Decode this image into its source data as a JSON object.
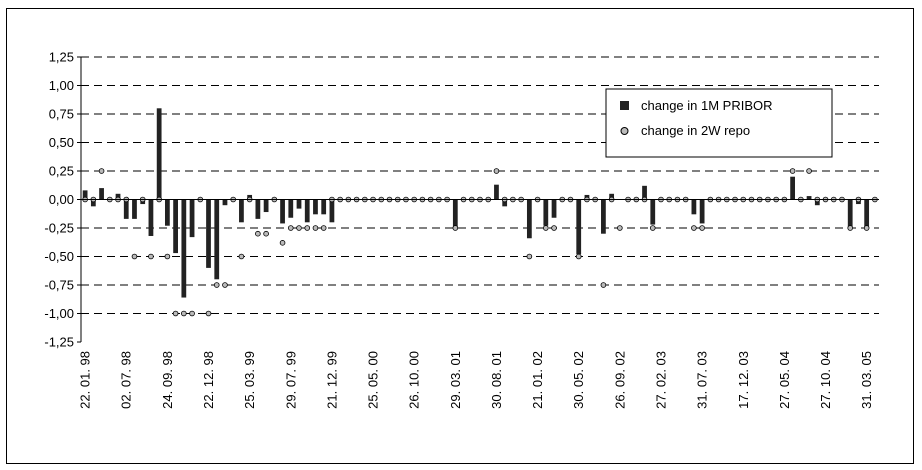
{
  "chart_data": {
    "type": "bar",
    "title": "",
    "xlabel": "",
    "ylabel": "",
    "ylim": [
      -1.25,
      1.25
    ],
    "yticks": [
      "1,25",
      "1,00",
      "0,75",
      "0,50",
      "0,25",
      "0,00",
      "-0,25",
      "-0,50",
      "-0,75",
      "-1,00",
      "-1,25"
    ],
    "ytick_values": [
      1.25,
      1.0,
      0.75,
      0.5,
      0.25,
      0.0,
      -0.25,
      -0.5,
      -0.75,
      -1.0,
      -1.25
    ],
    "x_tick_labels": [
      "22. 01. 98",
      "02. 07. 98",
      "24. 09. 98",
      "22. 12. 98",
      "25. 03. 99",
      "29. 07. 99",
      "21. 12. 99",
      "25. 05. 00",
      "26. 10. 00",
      "29. 03. 01",
      "30. 08. 01",
      "21. 01. 02",
      "30. 05. 02",
      "26. 09. 02",
      "27. 02. 03",
      "31. 07. 03",
      "17. 12. 03",
      "27. 05. 04",
      "27. 10. 04",
      "31. 03. 05"
    ],
    "x_tick_positions": [
      0,
      5,
      10,
      15,
      20,
      25,
      30,
      35,
      40,
      45,
      50,
      55,
      60,
      65,
      70,
      75,
      80,
      85,
      90,
      95
    ],
    "grid": "horizontal dashed",
    "legend_position": "top-right",
    "series": [
      {
        "name": "change in 1M PRIBOR",
        "style": "bar",
        "color": "#222222",
        "values": [
          0.08,
          -0.06,
          0.1,
          0.0,
          0.05,
          -0.17,
          -0.17,
          -0.04,
          -0.32,
          0.8,
          -0.23,
          -0.47,
          -0.86,
          -0.33,
          0.0,
          -0.6,
          -0.7,
          -0.05,
          0.0,
          -0.2,
          0.04,
          -0.17,
          -0.11,
          0.0,
          -0.21,
          -0.16,
          -0.08,
          -0.2,
          -0.13,
          -0.13,
          -0.2,
          0.0,
          0.0,
          0.0,
          0.0,
          0.0,
          0.0,
          0.0,
          0.0,
          0.0,
          0.0,
          0.0,
          0.0,
          0.0,
          0.0,
          -0.25,
          0.0,
          0.0,
          0.0,
          0.0,
          0.13,
          -0.06,
          0.0,
          0.0,
          -0.34,
          0.0,
          -0.23,
          -0.16,
          0.0,
          0.0,
          -0.48,
          0.04,
          0.0,
          -0.3,
          0.05,
          0.0,
          0.0,
          0.0,
          0.12,
          -0.22,
          0.0,
          0.0,
          0.0,
          0.0,
          -0.13,
          -0.21,
          0.0,
          0.0,
          0.0,
          0.0,
          0.0,
          0.0,
          0.0,
          0.0,
          0.0,
          0.0,
          0.2,
          0.0,
          0.03,
          -0.05,
          0.0,
          0.0,
          0.0,
          -0.25,
          -0.04,
          -0.25,
          0.0
        ]
      },
      {
        "name": "change in 2W repo",
        "style": "marker",
        "color": "#bbbbbb",
        "values": [
          0.0,
          0.0,
          0.25,
          0.0,
          0.0,
          0.0,
          -0.5,
          0.0,
          -0.5,
          0.0,
          -0.5,
          -1.0,
          -1.0,
          -1.0,
          0.0,
          -1.0,
          -0.75,
          -0.75,
          0.0,
          -0.5,
          0.0,
          -0.3,
          -0.3,
          0.0,
          -0.38,
          -0.25,
          -0.25,
          -0.25,
          -0.25,
          -0.25,
          0.0,
          0.0,
          0.0,
          0.0,
          0.0,
          0.0,
          0.0,
          0.0,
          0.0,
          0.0,
          0.0,
          0.0,
          0.0,
          0.0,
          0.0,
          -0.25,
          0.0,
          0.0,
          0.0,
          0.0,
          0.25,
          0.0,
          0.0,
          0.0,
          -0.5,
          0.0,
          -0.25,
          -0.25,
          0.0,
          0.0,
          -0.5,
          0.0,
          0.0,
          -0.75,
          0.0,
          -0.25,
          0.0,
          0.0,
          0.0,
          -0.25,
          0.0,
          0.0,
          0.0,
          0.0,
          -0.25,
          -0.25,
          0.0,
          0.0,
          0.0,
          0.0,
          0.0,
          0.0,
          0.0,
          0.0,
          0.0,
          0.0,
          0.25,
          0.0,
          0.25,
          0.0,
          0.0,
          0.0,
          0.0,
          -0.25,
          0.0,
          -0.25,
          0.0
        ]
      }
    ]
  }
}
